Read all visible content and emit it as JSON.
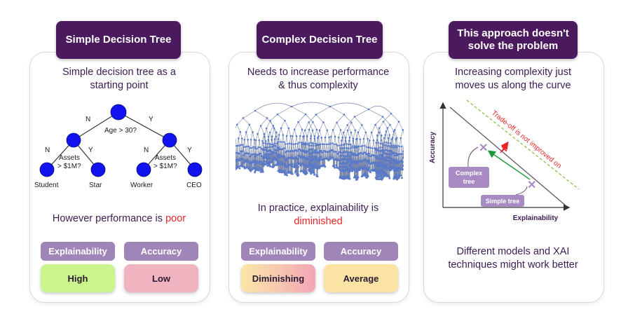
{
  "panel1": {
    "title": "Simple Decision Tree",
    "subtitle": "Simple decision tree as a\nstarting point",
    "tree": {
      "root_question": "Age > 30?",
      "root_no": "N",
      "root_yes": "Y",
      "left_no": "N",
      "left_yes": "Y",
      "right_no": "N",
      "right_yes": "Y",
      "left_question_1": "Assets",
      "left_question_2": "> $1M?",
      "right_question_1": "Assets",
      "right_question_2": "> $1M?",
      "leaves": [
        "Student",
        "Star",
        "Worker",
        "CEO"
      ]
    },
    "message_prefix": "However performance is ",
    "message_highlight": "poor",
    "metric1_label": "Explainability",
    "metric2_label": "Accuracy",
    "metric1_value": "High",
    "metric2_value": "Low",
    "colors": {
      "metric1": "#c9f58c",
      "metric2": "#f0b3c0",
      "node": "#1212ee"
    }
  },
  "panel2": {
    "title": "Complex Decision Tree",
    "subtitle": "Needs to increase performance\n& thus complexity",
    "message_line1": "In practice, explainability is",
    "message_highlight": "diminished",
    "metric1_label": "Explainability",
    "metric2_label": "Accuracy",
    "metric1_value": "Diminishing",
    "metric2_value": "Average",
    "colors": {
      "metric1_from": "#fbe8a8",
      "metric1_to": "#f3a6b6",
      "metric2": "#fbe3a4"
    }
  },
  "panel3": {
    "title": "This approach doesn't\nsolve the problem",
    "subtitle": "Increasing complexity just\nmoves us along the curve",
    "chart": {
      "x_label": "Explainability",
      "y_label": "Accuracy",
      "tradeoff_label": "Trade-off is not improved on",
      "complex_label_1": "Complex",
      "complex_label_2": "tree",
      "simple_label": "Simple tree"
    },
    "message": "Different models and XAI\ntechniques might work better"
  },
  "colors": {
    "header_bg": "#4b1a5e",
    "pill_bg": "#9f85b8",
    "accent_red": "#e8262a",
    "text": "#3a1d52"
  }
}
